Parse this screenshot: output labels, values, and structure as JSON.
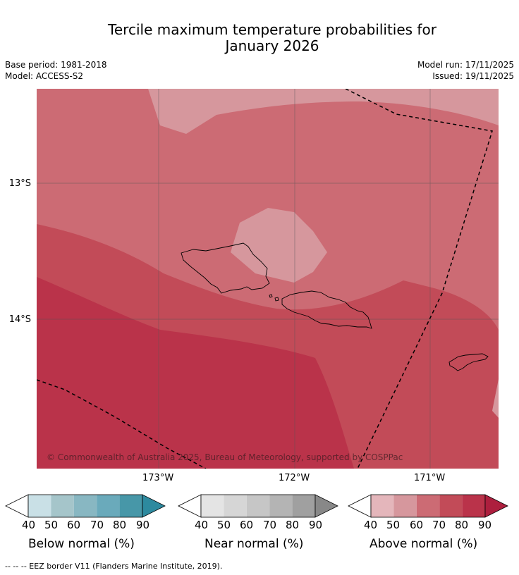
{
  "title": {
    "line1": "Tercile maximum temperature probabilities for",
    "line2": "January 2026"
  },
  "meta": {
    "base_period": "Base period: 1981-2018",
    "model": "Model: ACCESS-S2",
    "model_run": "Model run: 17/11/2025",
    "issued": "Issued: 19/11/2025"
  },
  "map": {
    "lat_labels": [
      "13°S",
      "14°S"
    ],
    "lon_labels": [
      "173°W",
      "172°W",
      "171°W"
    ],
    "copyright": "© Commonwealth of Australia 2025, Bureau of Meteorology, supported by COSPPac",
    "colors": {
      "above_50": "#d6979d",
      "above_60": "#cc6b74",
      "above_70": "#c24b58",
      "above_80": "#ba334a"
    }
  },
  "legends": [
    {
      "id": "below",
      "label": "Below normal (%)",
      "ticks": [
        "40",
        "50",
        "60",
        "70",
        "80",
        "90"
      ],
      "colors": [
        "#ffffff",
        "#c9e0e6",
        "#a5c5ca",
        "#88b7c2",
        "#6aaabb",
        "#4797a8",
        "#2d8a9f"
      ]
    },
    {
      "id": "near",
      "label": "Near normal (%)",
      "ticks": [
        "40",
        "50",
        "60",
        "70",
        "80",
        "90"
      ],
      "colors": [
        "#ffffff",
        "#e4e4e4",
        "#d6d6d6",
        "#c6c6c6",
        "#b4b4b4",
        "#a0a0a0",
        "#888888"
      ]
    },
    {
      "id": "above",
      "label": "Above normal (%)",
      "ticks": [
        "40",
        "50",
        "60",
        "70",
        "80",
        "90"
      ],
      "colors": [
        "#ffffff",
        "#e4b6bb",
        "#d6979d",
        "#cc6b74",
        "#c24b58",
        "#ba334a",
        "#ad1f3e"
      ]
    }
  ],
  "footnote": "--  --  -- EEZ border V11 (Flanders Marine Institute, 2019)."
}
